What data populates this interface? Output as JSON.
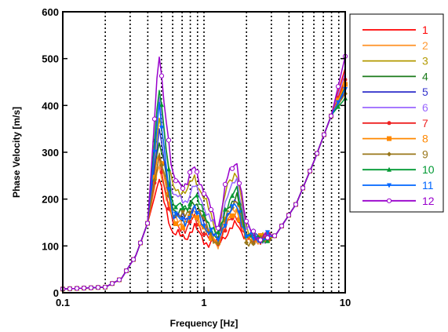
{
  "chart_data": {
    "type": "line",
    "title": "",
    "xlabel": "Frequency [Hz]",
    "ylabel": "Phase Velocity [m/s]",
    "xscale": "log",
    "xlim": [
      0.1,
      10
    ],
    "ylim": [
      0,
      600
    ],
    "grid": "vertical dotted lines",
    "legend_position": "right",
    "x_ticks": [
      {
        "value": 0.1,
        "label": "0.1"
      },
      {
        "value": 1,
        "label": "1"
      },
      {
        "value": 10,
        "label": "10"
      }
    ],
    "y_ticks": [
      {
        "value": 0,
        "label": "0"
      },
      {
        "value": 100,
        "label": "100"
      },
      {
        "value": 200,
        "label": "200"
      },
      {
        "value": 300,
        "label": "300"
      },
      {
        "value": 400,
        "label": "400"
      },
      {
        "value": 500,
        "label": "500"
      },
      {
        "value": 600,
        "label": "600"
      }
    ],
    "series": [
      {
        "name": "1",
        "color": "#ff0000",
        "marker": "none",
        "peak": 240,
        "mid": 140,
        "trough": 110,
        "end": 480
      },
      {
        "name": "2",
        "color": "#ff9933",
        "marker": "none",
        "peak": 270,
        "mid": 175,
        "trough": 100,
        "end": 460
      },
      {
        "name": "3",
        "color": "#b39a00",
        "marker": "none",
        "peak": 380,
        "mid": 250,
        "trough": 125,
        "end": 450
      },
      {
        "name": "4",
        "color": "#1a7a1a",
        "marker": "none",
        "peak": 330,
        "mid": 200,
        "trough": 115,
        "end": 440
      },
      {
        "name": "5",
        "color": "#3333cc",
        "marker": "none",
        "peak": 350,
        "mid": 185,
        "trough": 120,
        "end": 430
      },
      {
        "name": "6",
        "color": "#9966ff",
        "marker": "none",
        "peak": 420,
        "mid": 230,
        "trough": 130,
        "end": 470
      },
      {
        "name": "7",
        "color": "#ee2222",
        "marker": "circle-filled",
        "peak": 290,
        "mid": 160,
        "trough": 105,
        "end": 455
      },
      {
        "name": "8",
        "color": "#ff8800",
        "marker": "square",
        "peak": 310,
        "mid": 170,
        "trough": 110,
        "end": 445
      },
      {
        "name": "9",
        "color": "#99771a",
        "marker": "diamond",
        "peak": 300,
        "mid": 190,
        "trough": 100,
        "end": 425
      },
      {
        "name": "10",
        "color": "#009933",
        "marker": "triangle-up",
        "peak": 440,
        "mid": 210,
        "trough": 118,
        "end": 415
      },
      {
        "name": "11",
        "color": "#0066ff",
        "marker": "triangle-down",
        "peak": 400,
        "mid": 180,
        "trough": 112,
        "end": 435
      },
      {
        "name": "12",
        "color": "#9900cc",
        "marker": "circle-open",
        "peak": 515,
        "mid": 270,
        "trough": 135,
        "end": 505
      }
    ]
  }
}
